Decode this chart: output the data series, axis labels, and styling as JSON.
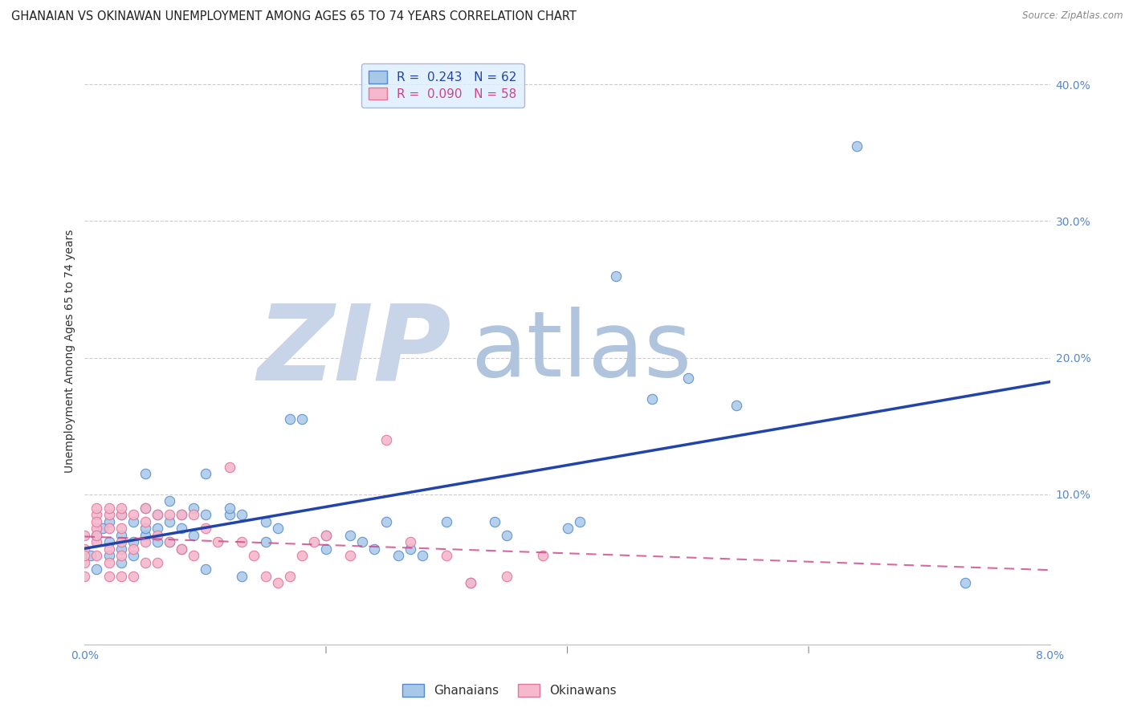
{
  "title": "GHANAIAN VS OKINAWAN UNEMPLOYMENT AMONG AGES 65 TO 74 YEARS CORRELATION CHART",
  "source": "Source: ZipAtlas.com",
  "ylabel": "Unemployment Among Ages 65 to 74 years",
  "xlim": [
    0.0,
    0.08
  ],
  "ylim": [
    -0.01,
    0.42
  ],
  "yticks": [
    0.0,
    0.1,
    0.2,
    0.3,
    0.4
  ],
  "ytick_labels_right": [
    "",
    "10.0%",
    "20.0%",
    "30.0%",
    "40.0%"
  ],
  "xticks": [
    0.0,
    0.02,
    0.04,
    0.06,
    0.08
  ],
  "xtick_labels": [
    "0.0%",
    "",
    "",
    "",
    "8.0%"
  ],
  "ghanaian_color": "#a8c8e8",
  "ghanaian_edge_color": "#5588cc",
  "okinawan_color": "#f5b8cc",
  "okinawan_edge_color": "#e07898",
  "trendline_ghanaian_color": "#2244aa",
  "trendline_okinawan_color": "#cc4488",
  "R_ghanaian": 0.243,
  "N_ghanaian": 62,
  "R_okinawan": 0.09,
  "N_okinawan": 58,
  "legend_box_color": "#ddeeff",
  "legend_edge_color": "#99aacc",
  "grid_color": "#cccccc",
  "background_color": "#ffffff",
  "tick_color": "#5588cc",
  "title_fontsize": 10.5,
  "axis_label_fontsize": 10,
  "tick_fontsize": 10,
  "legend_fontsize": 11,
  "marker_size": 80,
  "ghanaian_x": [
    0.0005,
    0.001,
    0.001,
    0.0015,
    0.002,
    0.002,
    0.002,
    0.003,
    0.003,
    0.003,
    0.003,
    0.004,
    0.004,
    0.004,
    0.005,
    0.005,
    0.005,
    0.005,
    0.006,
    0.006,
    0.006,
    0.007,
    0.007,
    0.007,
    0.008,
    0.008,
    0.008,
    0.009,
    0.009,
    0.01,
    0.01,
    0.01,
    0.012,
    0.012,
    0.013,
    0.013,
    0.015,
    0.015,
    0.016,
    0.017,
    0.018,
    0.02,
    0.02,
    0.022,
    0.023,
    0.024,
    0.025,
    0.026,
    0.027,
    0.028,
    0.03,
    0.032,
    0.034,
    0.035,
    0.04,
    0.041,
    0.044,
    0.047,
    0.05,
    0.054,
    0.064,
    0.073
  ],
  "ghanaian_y": [
    0.055,
    0.07,
    0.045,
    0.075,
    0.065,
    0.08,
    0.055,
    0.085,
    0.07,
    0.06,
    0.05,
    0.08,
    0.065,
    0.055,
    0.09,
    0.07,
    0.115,
    0.075,
    0.085,
    0.075,
    0.065,
    0.095,
    0.08,
    0.065,
    0.085,
    0.075,
    0.06,
    0.09,
    0.07,
    0.115,
    0.085,
    0.045,
    0.085,
    0.09,
    0.04,
    0.085,
    0.08,
    0.065,
    0.075,
    0.155,
    0.155,
    0.07,
    0.06,
    0.07,
    0.065,
    0.06,
    0.08,
    0.055,
    0.06,
    0.055,
    0.08,
    0.035,
    0.08,
    0.07,
    0.075,
    0.08,
    0.26,
    0.17,
    0.185,
    0.165,
    0.355,
    0.035
  ],
  "okinawan_x": [
    0.0,
    0.0,
    0.0,
    0.0,
    0.0,
    0.001,
    0.001,
    0.001,
    0.001,
    0.001,
    0.001,
    0.001,
    0.002,
    0.002,
    0.002,
    0.002,
    0.002,
    0.002,
    0.003,
    0.003,
    0.003,
    0.003,
    0.003,
    0.003,
    0.004,
    0.004,
    0.004,
    0.005,
    0.005,
    0.005,
    0.005,
    0.006,
    0.006,
    0.006,
    0.007,
    0.007,
    0.008,
    0.008,
    0.009,
    0.009,
    0.01,
    0.011,
    0.012,
    0.013,
    0.014,
    0.015,
    0.016,
    0.017,
    0.018,
    0.019,
    0.02,
    0.022,
    0.025,
    0.027,
    0.03,
    0.032,
    0.035,
    0.038
  ],
  "okinawan_y": [
    0.06,
    0.05,
    0.07,
    0.04,
    0.055,
    0.085,
    0.075,
    0.065,
    0.055,
    0.08,
    0.07,
    0.09,
    0.085,
    0.075,
    0.06,
    0.05,
    0.09,
    0.04,
    0.085,
    0.075,
    0.065,
    0.055,
    0.09,
    0.04,
    0.085,
    0.06,
    0.04,
    0.09,
    0.08,
    0.065,
    0.05,
    0.085,
    0.07,
    0.05,
    0.085,
    0.065,
    0.085,
    0.06,
    0.085,
    0.055,
    0.075,
    0.065,
    0.12,
    0.065,
    0.055,
    0.04,
    0.035,
    0.04,
    0.055,
    0.065,
    0.07,
    0.055,
    0.14,
    0.065,
    0.055,
    0.035,
    0.04,
    0.055
  ]
}
